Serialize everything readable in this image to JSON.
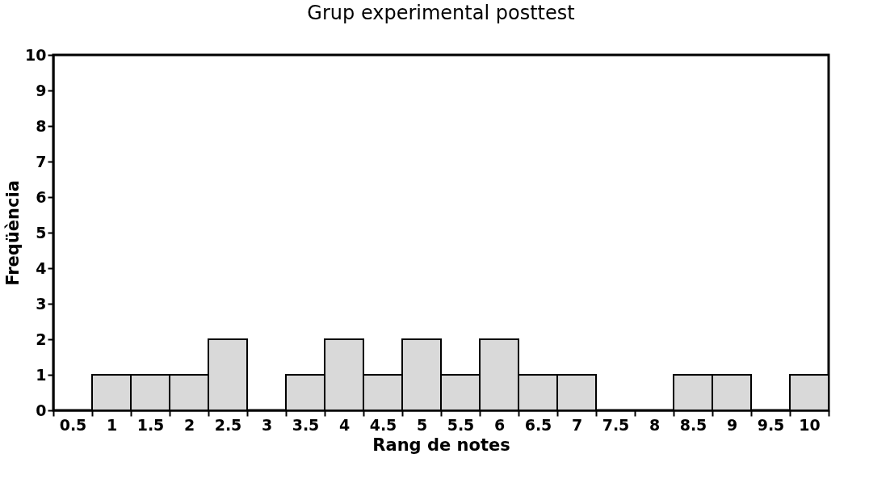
{
  "chart_data": {
    "type": "bar",
    "title": "Grup experimental posttest",
    "xlabel": "Rang de notes",
    "ylabel": "Freqüència",
    "categories": [
      "0.5",
      "1",
      "1.5",
      "2",
      "2.5",
      "3",
      "3.5",
      "4",
      "4.5",
      "5",
      "5.5",
      "6",
      "6.5",
      "7",
      "7.5",
      "8",
      "8.5",
      "9",
      "9.5",
      "10"
    ],
    "values": [
      0,
      1,
      1,
      1,
      2,
      0,
      1,
      2,
      1,
      2,
      1,
      2,
      1,
      1,
      0,
      0,
      1,
      1,
      0,
      1
    ],
    "color": "#d9d9d9",
    "ylim": [
      0,
      10
    ],
    "yticks": [
      0,
      1,
      2,
      3,
      4,
      5,
      6,
      7,
      8,
      9,
      10
    ],
    "grid": false
  }
}
